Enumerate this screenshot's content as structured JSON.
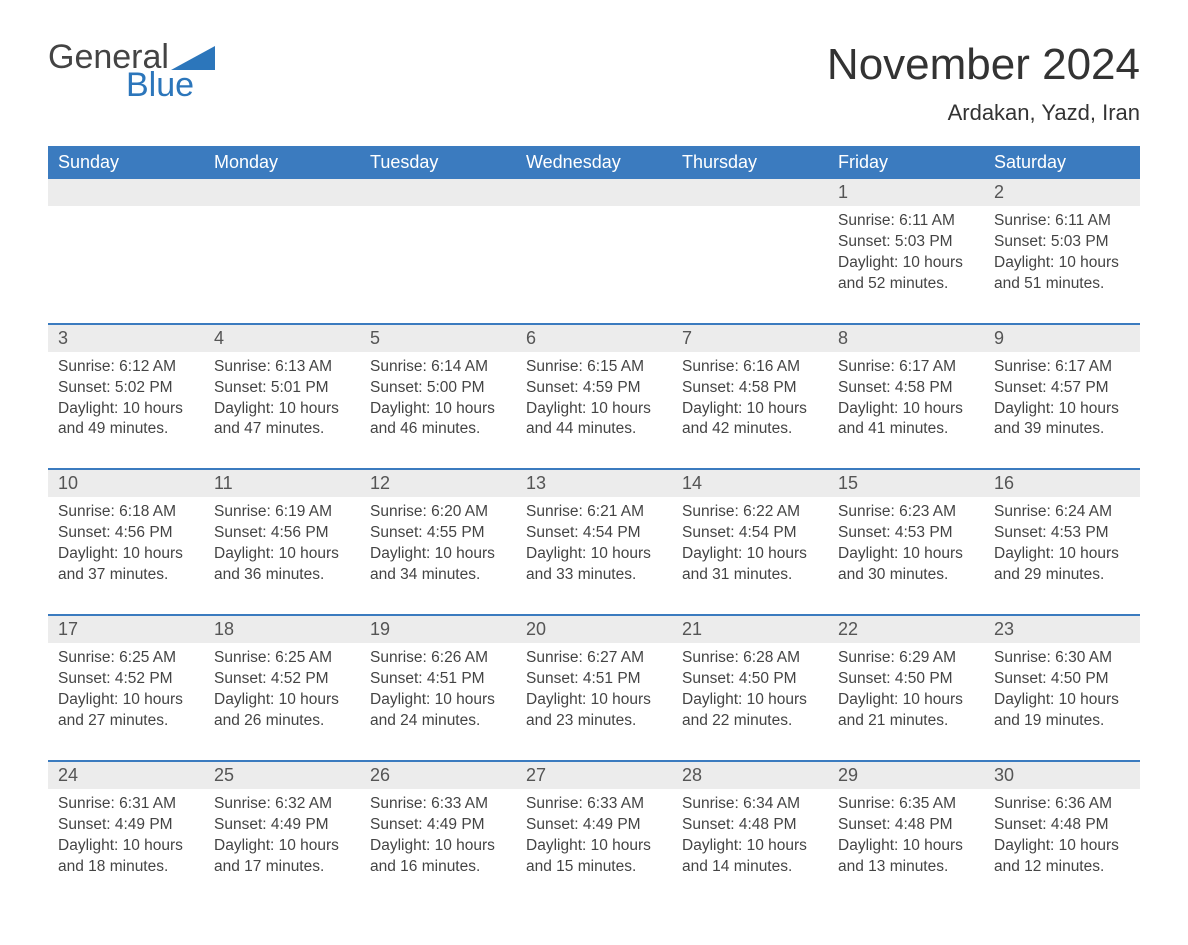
{
  "logo": {
    "text1": "General",
    "text2": "Blue"
  },
  "title": "November 2024",
  "location": "Ardakan, Yazd, Iran",
  "colors": {
    "header_bg": "#3b7bbf",
    "header_text": "#ffffff",
    "daynum_bg": "#ececec",
    "daynum_text": "#555555",
    "body_text": "#444444",
    "logo_blue": "#2c76bb",
    "border": "#3b7bbf"
  },
  "weekdays": [
    "Sunday",
    "Monday",
    "Tuesday",
    "Wednesday",
    "Thursday",
    "Friday",
    "Saturday"
  ],
  "weeks": [
    [
      {
        "empty": true
      },
      {
        "empty": true
      },
      {
        "empty": true
      },
      {
        "empty": true
      },
      {
        "empty": true
      },
      {
        "day": "1",
        "sunrise": "Sunrise: 6:11 AM",
        "sunset": "Sunset: 5:03 PM",
        "daylight": "Daylight: 10 hours and 52 minutes."
      },
      {
        "day": "2",
        "sunrise": "Sunrise: 6:11 AM",
        "sunset": "Sunset: 5:03 PM",
        "daylight": "Daylight: 10 hours and 51 minutes."
      }
    ],
    [
      {
        "day": "3",
        "sunrise": "Sunrise: 6:12 AM",
        "sunset": "Sunset: 5:02 PM",
        "daylight": "Daylight: 10 hours and 49 minutes."
      },
      {
        "day": "4",
        "sunrise": "Sunrise: 6:13 AM",
        "sunset": "Sunset: 5:01 PM",
        "daylight": "Daylight: 10 hours and 47 minutes."
      },
      {
        "day": "5",
        "sunrise": "Sunrise: 6:14 AM",
        "sunset": "Sunset: 5:00 PM",
        "daylight": "Daylight: 10 hours and 46 minutes."
      },
      {
        "day": "6",
        "sunrise": "Sunrise: 6:15 AM",
        "sunset": "Sunset: 4:59 PM",
        "daylight": "Daylight: 10 hours and 44 minutes."
      },
      {
        "day": "7",
        "sunrise": "Sunrise: 6:16 AM",
        "sunset": "Sunset: 4:58 PM",
        "daylight": "Daylight: 10 hours and 42 minutes."
      },
      {
        "day": "8",
        "sunrise": "Sunrise: 6:17 AM",
        "sunset": "Sunset: 4:58 PM",
        "daylight": "Daylight: 10 hours and 41 minutes."
      },
      {
        "day": "9",
        "sunrise": "Sunrise: 6:17 AM",
        "sunset": "Sunset: 4:57 PM",
        "daylight": "Daylight: 10 hours and 39 minutes."
      }
    ],
    [
      {
        "day": "10",
        "sunrise": "Sunrise: 6:18 AM",
        "sunset": "Sunset: 4:56 PM",
        "daylight": "Daylight: 10 hours and 37 minutes."
      },
      {
        "day": "11",
        "sunrise": "Sunrise: 6:19 AM",
        "sunset": "Sunset: 4:56 PM",
        "daylight": "Daylight: 10 hours and 36 minutes."
      },
      {
        "day": "12",
        "sunrise": "Sunrise: 6:20 AM",
        "sunset": "Sunset: 4:55 PM",
        "daylight": "Daylight: 10 hours and 34 minutes."
      },
      {
        "day": "13",
        "sunrise": "Sunrise: 6:21 AM",
        "sunset": "Sunset: 4:54 PM",
        "daylight": "Daylight: 10 hours and 33 minutes."
      },
      {
        "day": "14",
        "sunrise": "Sunrise: 6:22 AM",
        "sunset": "Sunset: 4:54 PM",
        "daylight": "Daylight: 10 hours and 31 minutes."
      },
      {
        "day": "15",
        "sunrise": "Sunrise: 6:23 AM",
        "sunset": "Sunset: 4:53 PM",
        "daylight": "Daylight: 10 hours and 30 minutes."
      },
      {
        "day": "16",
        "sunrise": "Sunrise: 6:24 AM",
        "sunset": "Sunset: 4:53 PM",
        "daylight": "Daylight: 10 hours and 29 minutes."
      }
    ],
    [
      {
        "day": "17",
        "sunrise": "Sunrise: 6:25 AM",
        "sunset": "Sunset: 4:52 PM",
        "daylight": "Daylight: 10 hours and 27 minutes."
      },
      {
        "day": "18",
        "sunrise": "Sunrise: 6:25 AM",
        "sunset": "Sunset: 4:52 PM",
        "daylight": "Daylight: 10 hours and 26 minutes."
      },
      {
        "day": "19",
        "sunrise": "Sunrise: 6:26 AM",
        "sunset": "Sunset: 4:51 PM",
        "daylight": "Daylight: 10 hours and 24 minutes."
      },
      {
        "day": "20",
        "sunrise": "Sunrise: 6:27 AM",
        "sunset": "Sunset: 4:51 PM",
        "daylight": "Daylight: 10 hours and 23 minutes."
      },
      {
        "day": "21",
        "sunrise": "Sunrise: 6:28 AM",
        "sunset": "Sunset: 4:50 PM",
        "daylight": "Daylight: 10 hours and 22 minutes."
      },
      {
        "day": "22",
        "sunrise": "Sunrise: 6:29 AM",
        "sunset": "Sunset: 4:50 PM",
        "daylight": "Daylight: 10 hours and 21 minutes."
      },
      {
        "day": "23",
        "sunrise": "Sunrise: 6:30 AM",
        "sunset": "Sunset: 4:50 PM",
        "daylight": "Daylight: 10 hours and 19 minutes."
      }
    ],
    [
      {
        "day": "24",
        "sunrise": "Sunrise: 6:31 AM",
        "sunset": "Sunset: 4:49 PM",
        "daylight": "Daylight: 10 hours and 18 minutes."
      },
      {
        "day": "25",
        "sunrise": "Sunrise: 6:32 AM",
        "sunset": "Sunset: 4:49 PM",
        "daylight": "Daylight: 10 hours and 17 minutes."
      },
      {
        "day": "26",
        "sunrise": "Sunrise: 6:33 AM",
        "sunset": "Sunset: 4:49 PM",
        "daylight": "Daylight: 10 hours and 16 minutes."
      },
      {
        "day": "27",
        "sunrise": "Sunrise: 6:33 AM",
        "sunset": "Sunset: 4:49 PM",
        "daylight": "Daylight: 10 hours and 15 minutes."
      },
      {
        "day": "28",
        "sunrise": "Sunrise: 6:34 AM",
        "sunset": "Sunset: 4:48 PM",
        "daylight": "Daylight: 10 hours and 14 minutes."
      },
      {
        "day": "29",
        "sunrise": "Sunrise: 6:35 AM",
        "sunset": "Sunset: 4:48 PM",
        "daylight": "Daylight: 10 hours and 13 minutes."
      },
      {
        "day": "30",
        "sunrise": "Sunrise: 6:36 AM",
        "sunset": "Sunset: 4:48 PM",
        "daylight": "Daylight: 10 hours and 12 minutes."
      }
    ]
  ]
}
